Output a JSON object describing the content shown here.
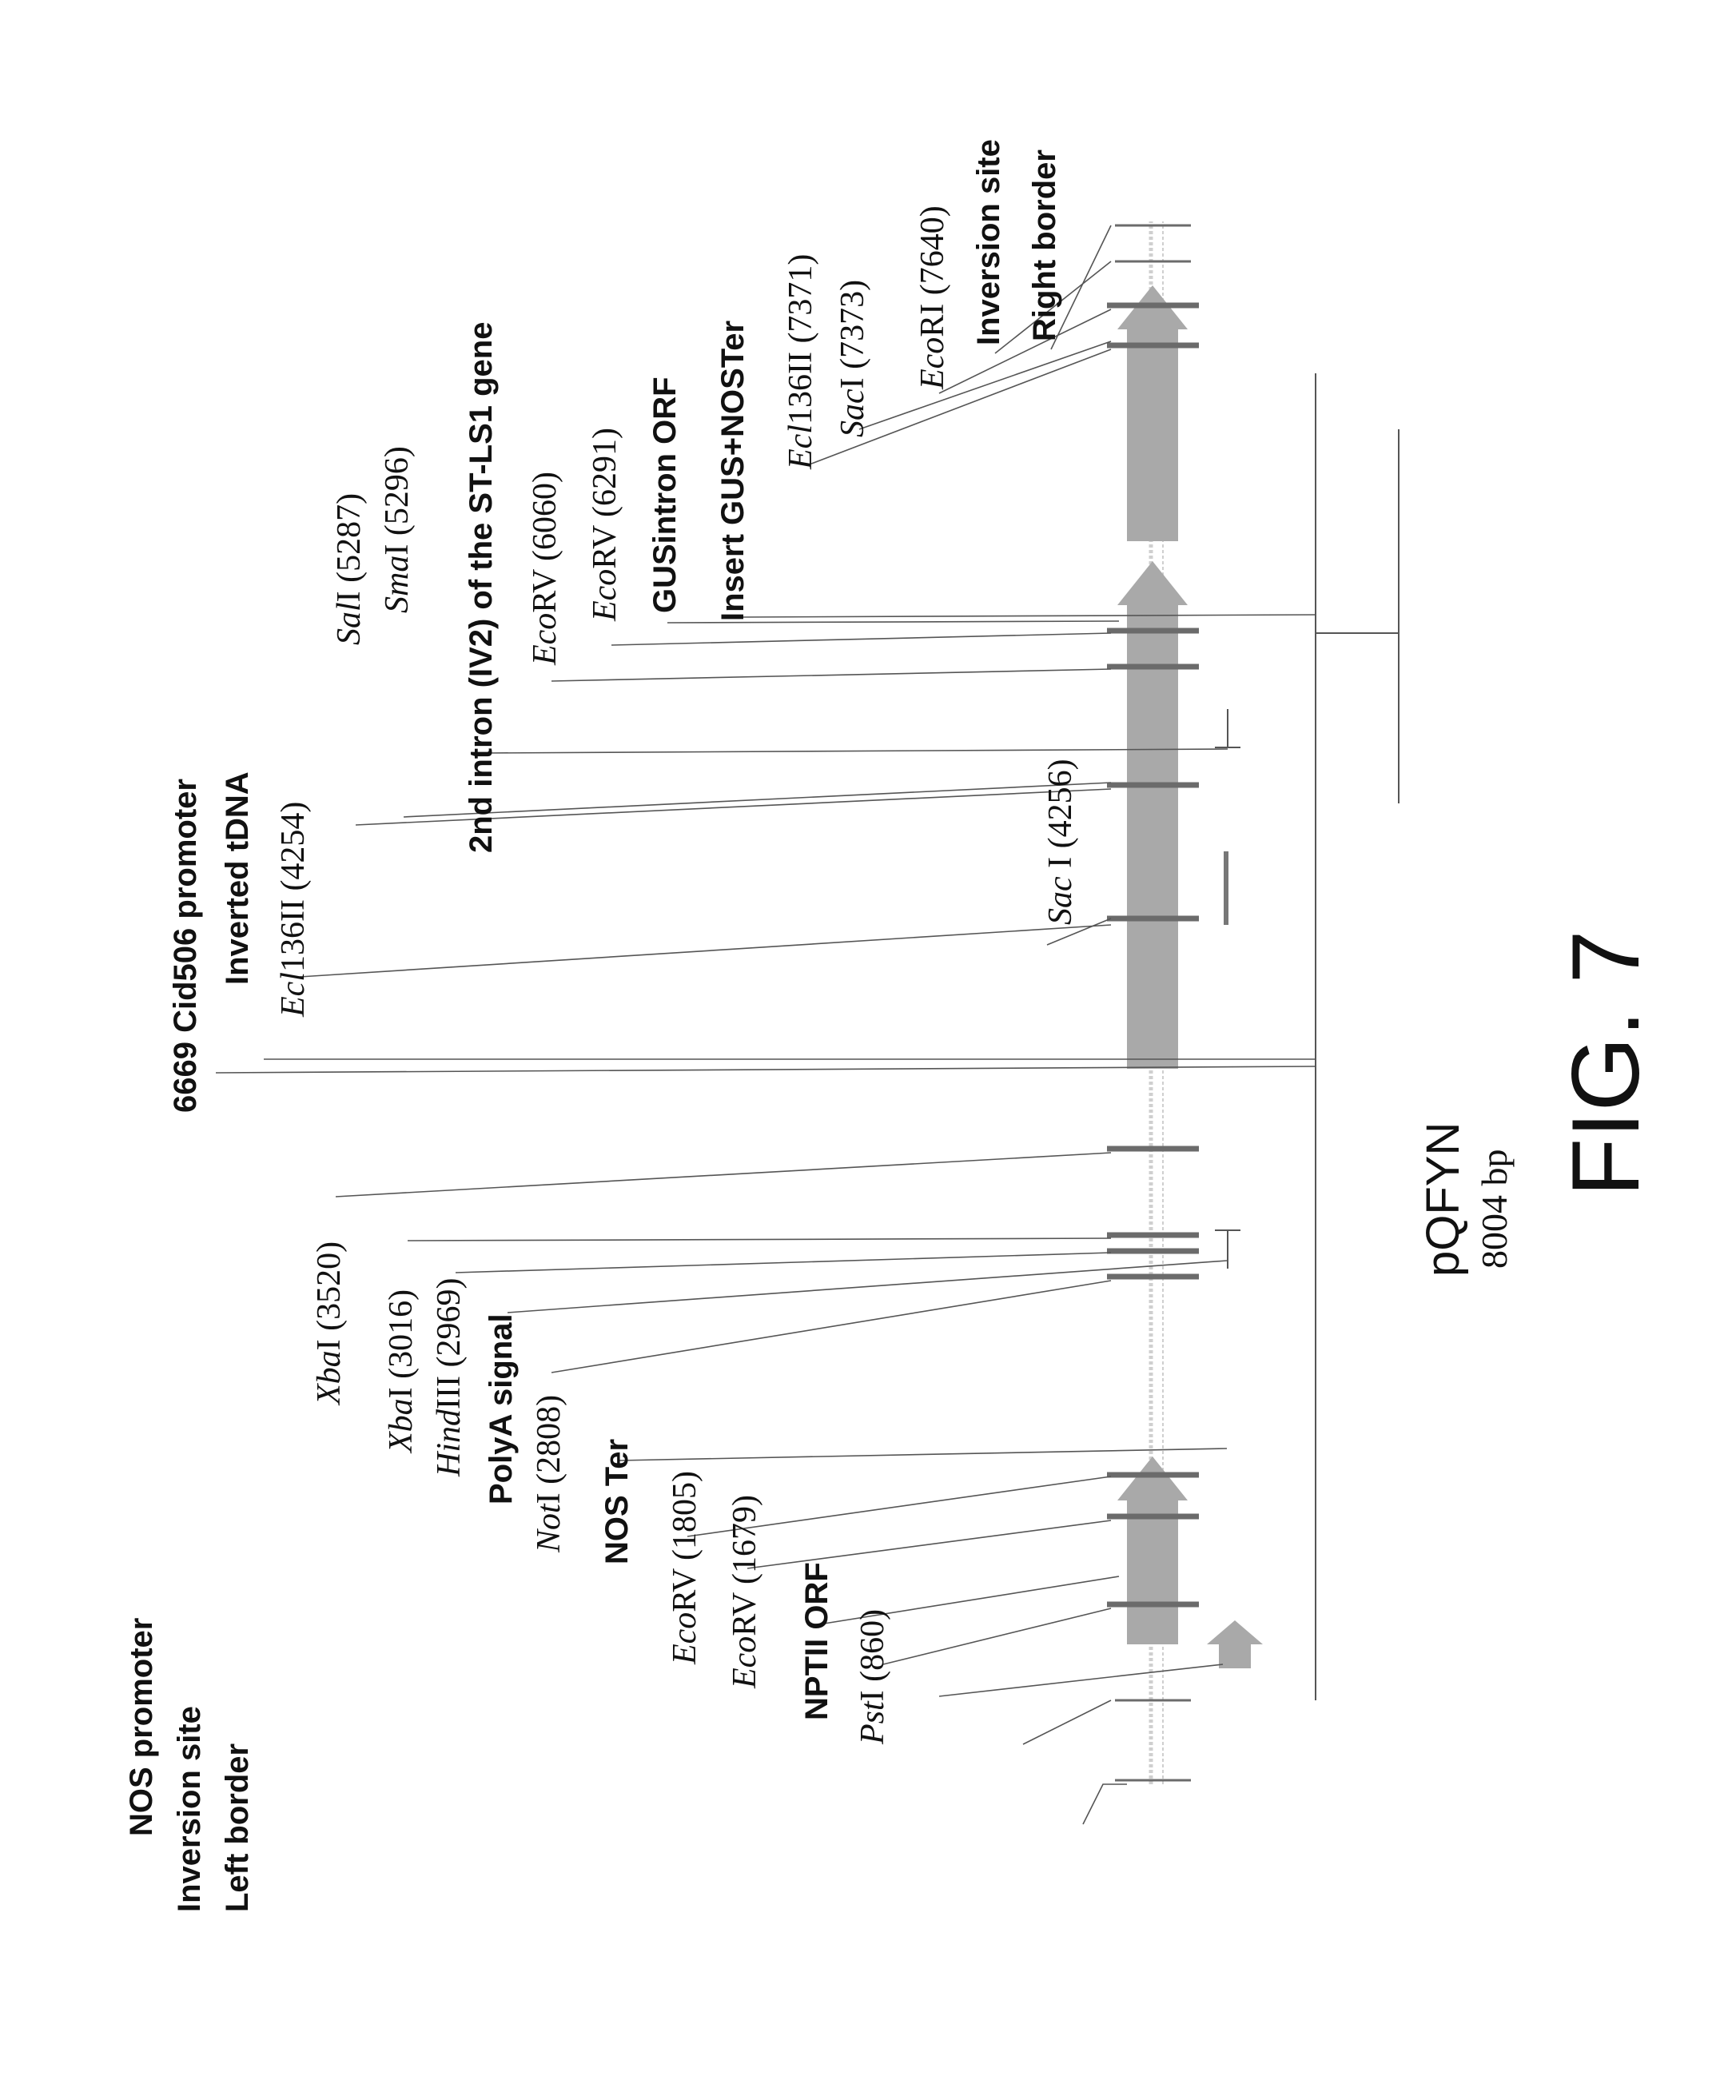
{
  "plasmid": {
    "name": "pQFYN",
    "size": "8004 bp",
    "figure": "FIG. 7"
  },
  "labels": [
    {
      "id": "left-border",
      "parts": [
        {
          "t": "Left border"
        }
      ]
    },
    {
      "id": "inversion-site-left",
      "parts": [
        {
          "t": "Inversion site"
        }
      ]
    },
    {
      "id": "nos-promoter",
      "parts": [
        {
          "t": "NOS promoter"
        }
      ]
    },
    {
      "id": "psti-860",
      "parts": [
        {
          "t": "Pst",
          "i": true
        },
        {
          "t": "I (860)"
        }
      ]
    },
    {
      "id": "nptii-orf",
      "parts": [
        {
          "t": "NPTII ORF"
        }
      ]
    },
    {
      "id": "ecorv-1679",
      "parts": [
        {
          "t": "Eco",
          "i": true
        },
        {
          "t": "RV (1679)"
        }
      ]
    },
    {
      "id": "ecorv-1805",
      "parts": [
        {
          "t": "Eco",
          "i": true
        },
        {
          "t": "RV (1805)"
        }
      ]
    },
    {
      "id": "nos-ter",
      "parts": [
        {
          "t": "NOS Ter"
        }
      ]
    },
    {
      "id": "noti-2808",
      "parts": [
        {
          "t": "Not",
          "i": true
        },
        {
          "t": "I (2808)"
        }
      ]
    },
    {
      "id": "polya-signal",
      "parts": [
        {
          "t": "PolyA signal"
        }
      ]
    },
    {
      "id": "hindiii-2969",
      "parts": [
        {
          "t": "Hind",
          "i": true
        },
        {
          "t": "III (2969)"
        }
      ]
    },
    {
      "id": "xbai-3016",
      "parts": [
        {
          "t": "Xba",
          "i": true
        },
        {
          "t": "I (3016)"
        }
      ]
    },
    {
      "id": "xbai-3520",
      "parts": [
        {
          "t": "Xba",
          "i": true
        },
        {
          "t": "I (3520)"
        }
      ]
    },
    {
      "id": "cid506-promoter",
      "parts": [
        {
          "t": "6669 Cid506 promoter"
        }
      ]
    },
    {
      "id": "inverted-tdna",
      "parts": [
        {
          "t": "Inverted tDNA"
        }
      ]
    },
    {
      "id": "ecl136ii-4254",
      "parts": [
        {
          "t": "Ecl",
          "i": true
        },
        {
          "t": "136II (4254)"
        }
      ]
    },
    {
      "id": "saci-4256",
      "parts": [
        {
          "t": "Sac",
          "i": true
        },
        {
          "t": " I (4256)"
        }
      ]
    },
    {
      "id": "sali-5287",
      "parts": [
        {
          "t": "Sal",
          "i": true
        },
        {
          "t": "I (5287)"
        }
      ]
    },
    {
      "id": "smai-5296",
      "parts": [
        {
          "t": "Sma",
          "i": true
        },
        {
          "t": "I (5296)"
        }
      ]
    },
    {
      "id": "second-intron",
      "parts": [
        {
          "t": "2nd intron (IV2) of the ST-LS1 gene"
        }
      ]
    },
    {
      "id": "ecorv-6060",
      "parts": [
        {
          "t": "Eco",
          "i": true
        },
        {
          "t": "RV (6060)"
        }
      ]
    },
    {
      "id": "ecorv-6291",
      "parts": [
        {
          "t": "Eco",
          "i": true
        },
        {
          "t": "RV (6291)"
        }
      ]
    },
    {
      "id": "gusintron-orf",
      "parts": [
        {
          "t": "GUSintron ORF"
        }
      ]
    },
    {
      "id": "insert-gus-noster",
      "parts": [
        {
          "t": "Insert GUS+NOSTer"
        }
      ]
    },
    {
      "id": "ecl136ii-7371",
      "parts": [
        {
          "t": "Ecl",
          "i": true
        },
        {
          "t": "136II (7371)"
        }
      ]
    },
    {
      "id": "saci-7373",
      "parts": [
        {
          "t": "Sac",
          "i": true
        },
        {
          "t": "I (7373)"
        }
      ]
    },
    {
      "id": "ecori-7640",
      "parts": [
        {
          "t": "Eco",
          "i": true
        },
        {
          "t": "RI (7640)"
        }
      ]
    },
    {
      "id": "inversion-site-right",
      "parts": [
        {
          "t": "Inversion site"
        }
      ]
    },
    {
      "id": "right-border",
      "parts": [
        {
          "t": "Right border"
        }
      ]
    }
  ]
}
